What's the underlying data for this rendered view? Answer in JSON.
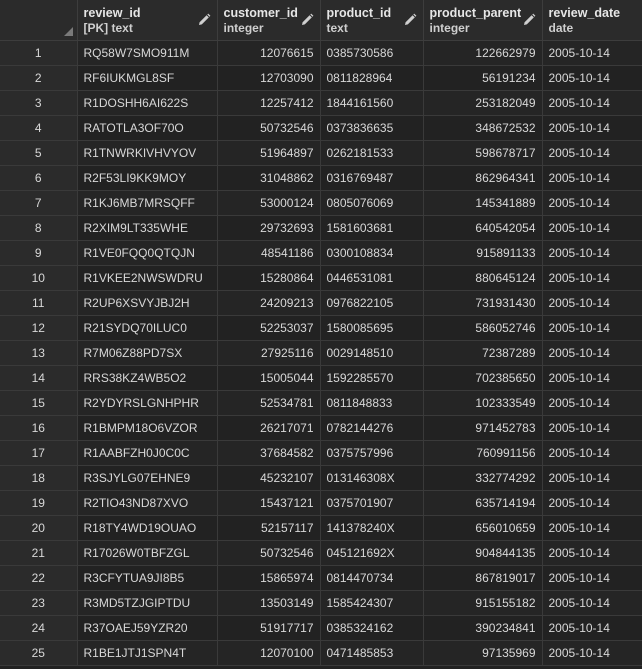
{
  "columns": [
    {
      "name": "review_id",
      "type": "[PK] text"
    },
    {
      "name": "customer_id",
      "type": "integer"
    },
    {
      "name": "product_id",
      "type": "text"
    },
    {
      "name": "product_parent",
      "type": "integer"
    },
    {
      "name": "review_date",
      "type": "date"
    }
  ],
  "rows": [
    {
      "n": "1",
      "review_id": "RQ58W7SMO911M",
      "customer_id": "12076615",
      "product_id": "0385730586",
      "product_parent": "122662979",
      "review_date": "2005-10-14"
    },
    {
      "n": "2",
      "review_id": "RF6IUKMGL8SF",
      "customer_id": "12703090",
      "product_id": "0811828964",
      "product_parent": "56191234",
      "review_date": "2005-10-14"
    },
    {
      "n": "3",
      "review_id": "R1DOSHH6AI622S",
      "customer_id": "12257412",
      "product_id": "1844161560",
      "product_parent": "253182049",
      "review_date": "2005-10-14"
    },
    {
      "n": "4",
      "review_id": "RATOTLA3OF70O",
      "customer_id": "50732546",
      "product_id": "0373836635",
      "product_parent": "348672532",
      "review_date": "2005-10-14"
    },
    {
      "n": "5",
      "review_id": "R1TNWRKIVHVYOV",
      "customer_id": "51964897",
      "product_id": "0262181533",
      "product_parent": "598678717",
      "review_date": "2005-10-14"
    },
    {
      "n": "6",
      "review_id": "R2F53LI9KK9MOY",
      "customer_id": "31048862",
      "product_id": "0316769487",
      "product_parent": "862964341",
      "review_date": "2005-10-14"
    },
    {
      "n": "7",
      "review_id": "R1KJ6MB7MRSQFF",
      "customer_id": "53000124",
      "product_id": "0805076069",
      "product_parent": "145341889",
      "review_date": "2005-10-14"
    },
    {
      "n": "8",
      "review_id": "R2XIM9LT335WHE",
      "customer_id": "29732693",
      "product_id": "1581603681",
      "product_parent": "640542054",
      "review_date": "2005-10-14"
    },
    {
      "n": "9",
      "review_id": "R1VE0FQQ0QTQJN",
      "customer_id": "48541186",
      "product_id": "0300108834",
      "product_parent": "915891133",
      "review_date": "2005-10-14"
    },
    {
      "n": "10",
      "review_id": "R1VKEE2NWSWDRU",
      "customer_id": "15280864",
      "product_id": "0446531081",
      "product_parent": "880645124",
      "review_date": "2005-10-14"
    },
    {
      "n": "11",
      "review_id": "R2UP6XSVYJBJ2H",
      "customer_id": "24209213",
      "product_id": "0976822105",
      "product_parent": "731931430",
      "review_date": "2005-10-14"
    },
    {
      "n": "12",
      "review_id": "R21SYDQ70ILUC0",
      "customer_id": "52253037",
      "product_id": "1580085695",
      "product_parent": "586052746",
      "review_date": "2005-10-14"
    },
    {
      "n": "13",
      "review_id": "R7M06Z88PD7SX",
      "customer_id": "27925116",
      "product_id": "0029148510",
      "product_parent": "72387289",
      "review_date": "2005-10-14"
    },
    {
      "n": "14",
      "review_id": "RRS38KZ4WB5O2",
      "customer_id": "15005044",
      "product_id": "1592285570",
      "product_parent": "702385650",
      "review_date": "2005-10-14"
    },
    {
      "n": "15",
      "review_id": "R2YDYRSLGNHPHR",
      "customer_id": "52534781",
      "product_id": "0811848833",
      "product_parent": "102333549",
      "review_date": "2005-10-14"
    },
    {
      "n": "16",
      "review_id": "R1BMPM18O6VZOR",
      "customer_id": "26217071",
      "product_id": "0782144276",
      "product_parent": "971452783",
      "review_date": "2005-10-14"
    },
    {
      "n": "17",
      "review_id": "R1AABFZH0J0C0C",
      "customer_id": "37684582",
      "product_id": "0375757996",
      "product_parent": "760991156",
      "review_date": "2005-10-14"
    },
    {
      "n": "18",
      "review_id": "R3SJYLG07EHNE9",
      "customer_id": "45232107",
      "product_id": "013146308X",
      "product_parent": "332774292",
      "review_date": "2005-10-14"
    },
    {
      "n": "19",
      "review_id": "R2TIO43ND87XVO",
      "customer_id": "15437121",
      "product_id": "0375701907",
      "product_parent": "635714194",
      "review_date": "2005-10-14"
    },
    {
      "n": "20",
      "review_id": "R18TY4WD19OUAO",
      "customer_id": "52157117",
      "product_id": "141378240X",
      "product_parent": "656010659",
      "review_date": "2005-10-14"
    },
    {
      "n": "21",
      "review_id": "R17026W0TBFZGL",
      "customer_id": "50732546",
      "product_id": "045121692X",
      "product_parent": "904844135",
      "review_date": "2005-10-14"
    },
    {
      "n": "22",
      "review_id": "R3CFYTUA9JI8B5",
      "customer_id": "15865974",
      "product_id": "0814470734",
      "product_parent": "867819017",
      "review_date": "2005-10-14"
    },
    {
      "n": "23",
      "review_id": "R3MD5TZJGIPTDU",
      "customer_id": "13503149",
      "product_id": "1585424307",
      "product_parent": "915155182",
      "review_date": "2005-10-14"
    },
    {
      "n": "24",
      "review_id": "R37OAEJ59YZR20",
      "customer_id": "51917717",
      "product_id": "0385324162",
      "product_parent": "390234841",
      "review_date": "2005-10-14"
    },
    {
      "n": "25",
      "review_id": "R1BE1JTJ1SPN4T",
      "customer_id": "12070100",
      "product_id": "0471485853",
      "product_parent": "97135969",
      "review_date": "2005-10-14"
    }
  ]
}
